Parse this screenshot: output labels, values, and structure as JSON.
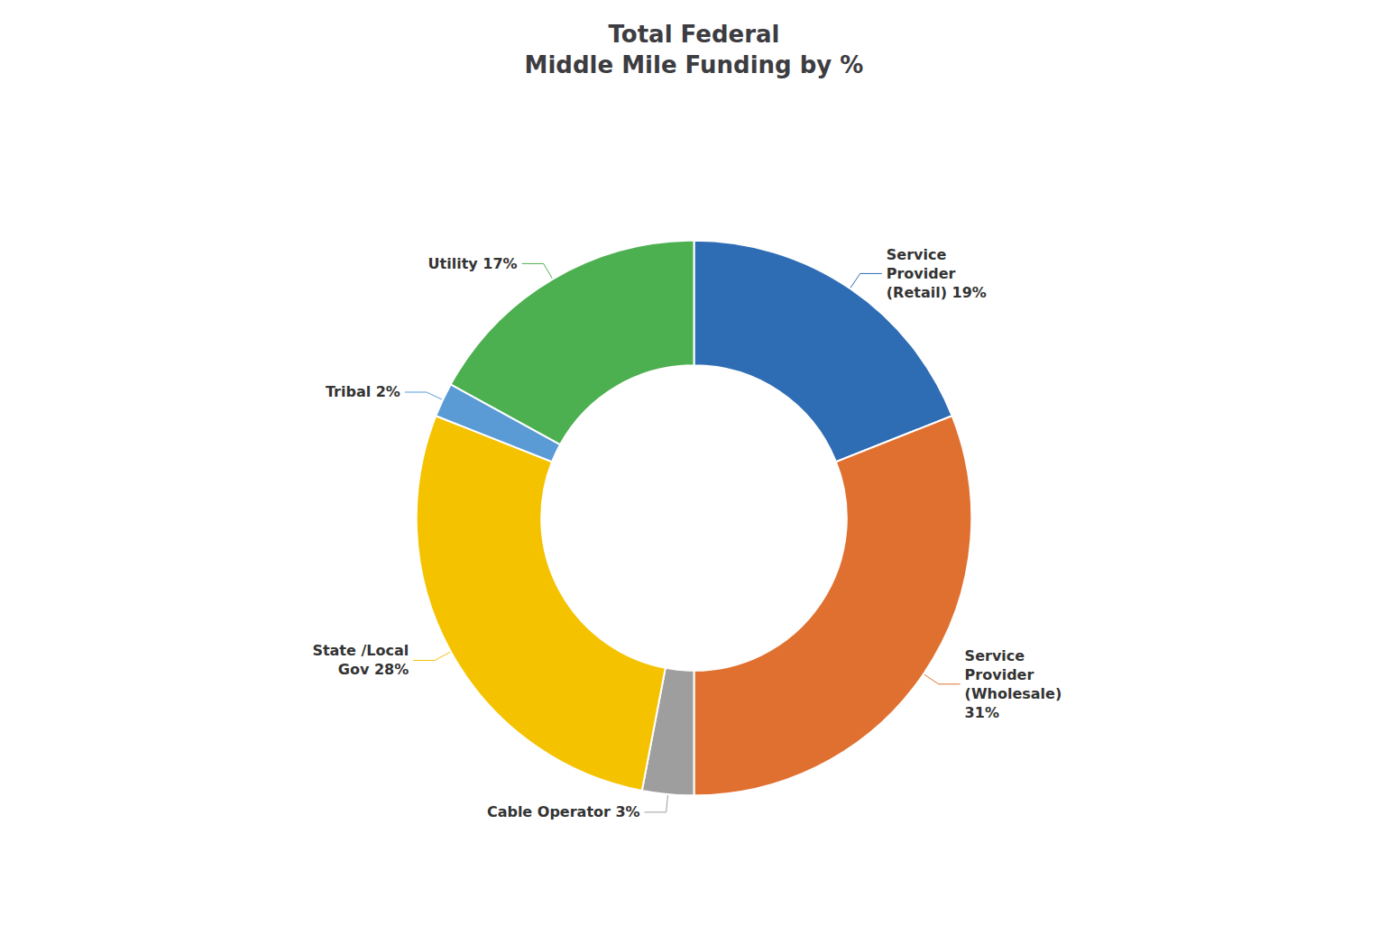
{
  "chart_data": {
    "type": "pie",
    "title": "Total Federal\nMiddle Mile Funding by %",
    "categories": [
      "Service\nProvider\n(Retail) 19%",
      "Service\nProvider\n(Wholesale)\n31%",
      "Cable Operator 3%",
      "State /Local\nGov 28%",
      "Tribal 2%",
      "Utility 17%"
    ],
    "values": [
      19,
      31,
      3,
      28,
      2,
      17
    ],
    "colors": [
      "#2E6DB4",
      "#E07030",
      "#9E9E9E",
      "#F5C200",
      "#5B9BD5",
      "#4CAF50"
    ],
    "legend": false
  }
}
